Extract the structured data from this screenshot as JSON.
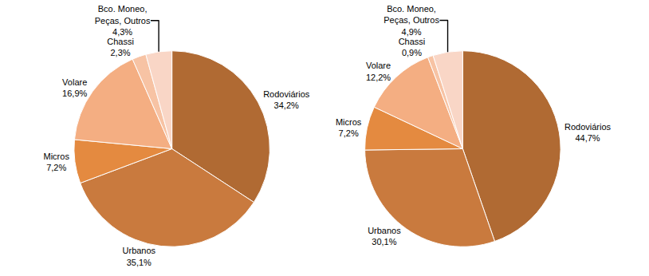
{
  "chart_data": [
    {
      "type": "pie",
      "categories": [
        "Rodoviários",
        "Urbanos",
        "Micros",
        "Volare",
        "Chassi",
        "Bco. Moneo, Peças, Outros"
      ],
      "values": [
        34.2,
        35.1,
        7.2,
        16.9,
        2.3,
        4.3
      ],
      "value_labels": [
        "34,2%",
        "35,1%",
        "7,2%",
        "16,9%",
        "2,3%",
        "4,3%"
      ],
      "colors": [
        "#b06a33",
        "#c97a3e",
        "#e48a40",
        "#f4ae82",
        "#f7c3a4",
        "#f9d6c6"
      ],
      "data_labels": true
    },
    {
      "type": "pie",
      "categories": [
        "Rodoviários",
        "Urbanos",
        "Micros",
        "Volare",
        "Chassi",
        "Bco. Moneo, Peças, Outros"
      ],
      "values": [
        44.7,
        30.1,
        7.2,
        12.2,
        0.9,
        4.9
      ],
      "value_labels": [
        "44,7%",
        "30,1%",
        "7,2%",
        "12,2%",
        "0,9%",
        "4,9%"
      ],
      "colors": [
        "#b06a33",
        "#c97a3e",
        "#e48a40",
        "#f4ae82",
        "#f7c3a4",
        "#f9d6c6"
      ],
      "data_labels": true
    }
  ]
}
